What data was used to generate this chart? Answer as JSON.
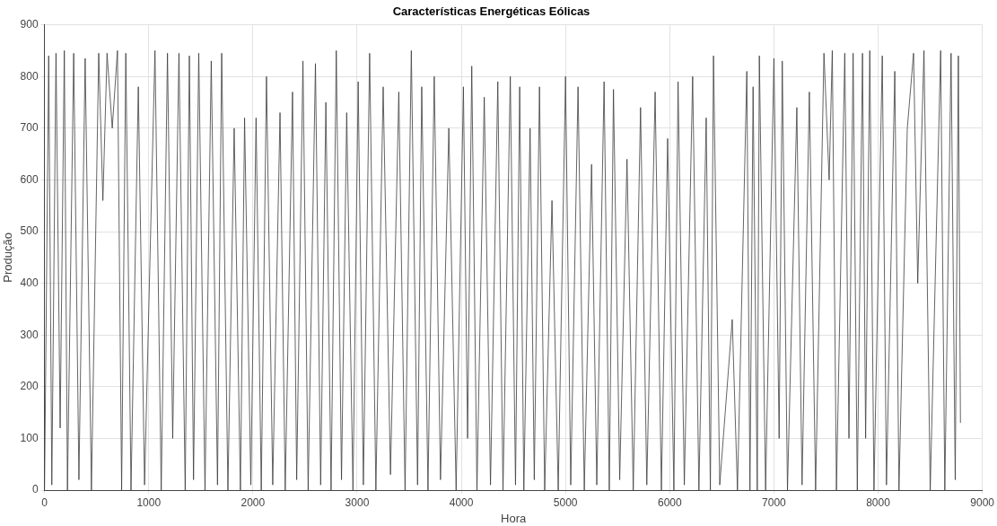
{
  "chart_data": {
    "type": "line",
    "title": "Características Energéticas Eólicas",
    "xlabel": "Hora",
    "ylabel": "Produção",
    "xlim": [
      0,
      9000
    ],
    "xticks": [
      0,
      1000,
      2000,
      3000,
      4000,
      5000,
      6000,
      7000,
      8000,
      9000
    ],
    "ylim": [
      0,
      900
    ],
    "yticks": [
      0,
      100,
      200,
      300,
      400,
      500,
      600,
      700,
      800,
      900
    ],
    "grid": true,
    "legend": false,
    "marker": "none",
    "line_style": "solid",
    "x": [
      0,
      40,
      70,
      110,
      150,
      190,
      220,
      280,
      330,
      390,
      450,
      520,
      560,
      600,
      650,
      700,
      740,
      780,
      830,
      900,
      960,
      1060,
      1120,
      1180,
      1230,
      1290,
      1350,
      1390,
      1430,
      1480,
      1540,
      1600,
      1660,
      1700,
      1760,
      1820,
      1880,
      1920,
      1980,
      2030,
      2080,
      2130,
      2190,
      2260,
      2310,
      2380,
      2420,
      2480,
      2530,
      2600,
      2650,
      2700,
      2750,
      2800,
      2850,
      2900,
      2960,
      3010,
      3060,
      3120,
      3180,
      3250,
      3320,
      3400,
      3460,
      3520,
      3580,
      3620,
      3680,
      3740,
      3800,
      3880,
      3950,
      4020,
      4060,
      4100,
      4150,
      4220,
      4280,
      4350,
      4400,
      4470,
      4520,
      4560,
      4600,
      4660,
      4700,
      4750,
      4800,
      4870,
      4930,
      5000,
      5050,
      5120,
      5180,
      5250,
      5300,
      5370,
      5420,
      5460,
      5520,
      5590,
      5650,
      5720,
      5780,
      5860,
      5920,
      5980,
      6040,
      6080,
      6140,
      6220,
      6280,
      6350,
      6390,
      6420,
      6480,
      6600,
      6650,
      6740,
      6770,
      6800,
      6840,
      6860,
      6920,
      7000,
      7050,
      7080,
      7130,
      7220,
      7270,
      7340,
      7400,
      7480,
      7530,
      7560,
      7600,
      7680,
      7720,
      7760,
      7800,
      7850,
      7880,
      7920,
      7960,
      8040,
      8080,
      8160,
      8200,
      8280,
      8340,
      8380,
      8440,
      8500,
      8600,
      8640,
      8700,
      8740,
      8770,
      8790
    ],
    "series": [
      {
        "color": "#3c3c3c",
        "values": [
          0,
          840,
          10,
          845,
          120,
          850,
          0,
          845,
          20,
          835,
          0,
          845,
          560,
          845,
          700,
          850,
          0,
          845,
          0,
          780,
          10,
          850,
          0,
          845,
          100,
          845,
          0,
          840,
          20,
          845,
          0,
          830,
          10,
          845,
          0,
          700,
          0,
          720,
          10,
          720,
          0,
          800,
          10,
          730,
          0,
          770,
          20,
          830,
          0,
          825,
          10,
          750,
          0,
          850,
          20,
          730,
          0,
          790,
          10,
          845,
          0,
          780,
          30,
          770,
          0,
          850,
          10,
          780,
          0,
          800,
          20,
          700,
          0,
          780,
          100,
          820,
          0,
          760,
          10,
          790,
          0,
          800,
          10,
          780,
          0,
          700,
          20,
          780,
          0,
          560,
          0,
          800,
          10,
          780,
          0,
          630,
          10,
          790,
          0,
          775,
          20,
          640,
          0,
          740,
          10,
          770,
          0,
          680,
          0,
          790,
          10,
          800,
          0,
          720,
          0,
          840,
          10,
          330,
          0,
          810,
          0,
          780,
          0,
          840,
          0,
          835,
          100,
          830,
          0,
          740,
          10,
          770,
          0,
          845,
          600,
          850,
          0,
          845,
          100,
          845,
          0,
          845,
          100,
          850,
          0,
          840,
          10,
          810,
          0,
          700,
          845,
          400,
          850,
          0,
          850,
          0,
          845,
          20,
          840,
          130
        ]
      }
    ]
  }
}
